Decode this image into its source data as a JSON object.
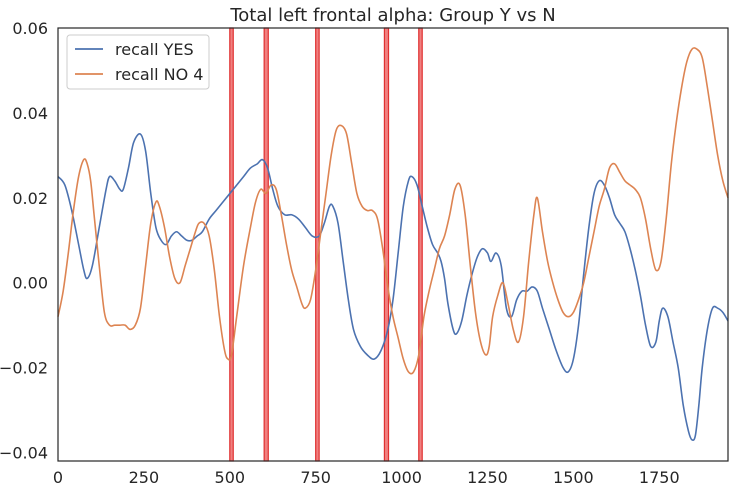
{
  "chart_data": {
    "type": "line",
    "title": "Total left frontal alpha: Group Y vs N",
    "xlabel": "",
    "ylabel": "",
    "xlim": [
      0,
      1950
    ],
    "ylim": [
      -0.042,
      0.06
    ],
    "xticks": [
      0,
      250,
      500,
      750,
      1000,
      1250,
      1500,
      1750
    ],
    "xtick_labels": [
      "0",
      "250",
      "500",
      "750",
      "1000",
      "1250",
      "1500",
      "1750"
    ],
    "yticks": [
      -0.04,
      -0.02,
      0.0,
      0.02,
      0.04,
      0.06
    ],
    "ytick_labels": [
      "−0.04",
      "−0.02",
      "0.00",
      "0.02",
      "0.04",
      "0.06"
    ],
    "grid": false,
    "legend_position": "top-left",
    "highlight_regions": [
      {
        "x0": 500,
        "x1": 510
      },
      {
        "x0": 600,
        "x1": 612
      },
      {
        "x0": 750,
        "x1": 760
      },
      {
        "x0": 950,
        "x1": 962
      },
      {
        "x0": 1050,
        "x1": 1060
      }
    ],
    "highlight_color": "#f08080",
    "highlight_edge_color": "#e03030",
    "series": [
      {
        "name": "recall YES",
        "color": "#4c72b0",
        "points": [
          [
            0,
            0.025
          ],
          [
            20,
            0.023
          ],
          [
            40,
            0.017
          ],
          [
            60,
            0.009
          ],
          [
            75,
            0.003
          ],
          [
            85,
            0.001
          ],
          [
            100,
            0.004
          ],
          [
            120,
            0.013
          ],
          [
            140,
            0.022
          ],
          [
            150,
            0.025
          ],
          [
            165,
            0.024
          ],
          [
            180,
            0.022
          ],
          [
            190,
            0.022
          ],
          [
            205,
            0.027
          ],
          [
            220,
            0.033
          ],
          [
            240,
            0.035
          ],
          [
            255,
            0.031
          ],
          [
            270,
            0.021
          ],
          [
            285,
            0.013
          ],
          [
            300,
            0.01
          ],
          [
            315,
            0.009
          ],
          [
            330,
            0.011
          ],
          [
            345,
            0.012
          ],
          [
            360,
            0.011
          ],
          [
            375,
            0.01
          ],
          [
            390,
            0.01
          ],
          [
            405,
            0.011
          ],
          [
            420,
            0.012
          ],
          [
            440,
            0.015
          ],
          [
            460,
            0.017
          ],
          [
            480,
            0.019
          ],
          [
            500,
            0.021
          ],
          [
            520,
            0.023
          ],
          [
            540,
            0.025
          ],
          [
            560,
            0.027
          ],
          [
            580,
            0.028
          ],
          [
            595,
            0.029
          ],
          [
            610,
            0.027
          ],
          [
            625,
            0.022
          ],
          [
            640,
            0.018
          ],
          [
            660,
            0.016
          ],
          [
            680,
            0.016
          ],
          [
            700,
            0.015
          ],
          [
            720,
            0.013
          ],
          [
            740,
            0.011
          ],
          [
            760,
            0.011
          ],
          [
            775,
            0.014
          ],
          [
            790,
            0.018
          ],
          [
            800,
            0.018
          ],
          [
            815,
            0.014
          ],
          [
            830,
            0.005
          ],
          [
            845,
            -0.004
          ],
          [
            860,
            -0.011
          ],
          [
            880,
            -0.015
          ],
          [
            900,
            -0.017
          ],
          [
            920,
            -0.018
          ],
          [
            940,
            -0.016
          ],
          [
            960,
            -0.011
          ],
          [
            975,
            -0.004
          ],
          [
            990,
            0.007
          ],
          [
            1005,
            0.018
          ],
          [
            1020,
            0.024
          ],
          [
            1030,
            0.025
          ],
          [
            1045,
            0.023
          ],
          [
            1060,
            0.018
          ],
          [
            1075,
            0.013
          ],
          [
            1090,
            0.009
          ],
          [
            1105,
            0.007
          ],
          [
            1115,
            0.005
          ],
          [
            1125,
            0.001
          ],
          [
            1135,
            -0.005
          ],
          [
            1150,
            -0.011
          ],
          [
            1160,
            -0.012
          ],
          [
            1175,
            -0.009
          ],
          [
            1190,
            -0.003
          ],
          [
            1205,
            0.002
          ],
          [
            1220,
            0.006
          ],
          [
            1235,
            0.008
          ],
          [
            1250,
            0.007
          ],
          [
            1260,
            0.005
          ],
          [
            1275,
            0.007
          ],
          [
            1290,
            0.004
          ],
          [
            1305,
            -0.006
          ],
          [
            1320,
            -0.008
          ],
          [
            1335,
            -0.004
          ],
          [
            1350,
            -0.002
          ],
          [
            1365,
            -0.002
          ],
          [
            1380,
            -0.001
          ],
          [
            1395,
            -0.002
          ],
          [
            1410,
            -0.006
          ],
          [
            1430,
            -0.011
          ],
          [
            1450,
            -0.016
          ],
          [
            1470,
            -0.02
          ],
          [
            1485,
            -0.021
          ],
          [
            1500,
            -0.018
          ],
          [
            1515,
            -0.01
          ],
          [
            1530,
            0.002
          ],
          [
            1545,
            0.013
          ],
          [
            1560,
            0.021
          ],
          [
            1575,
            0.024
          ],
          [
            1590,
            0.023
          ],
          [
            1605,
            0.02
          ],
          [
            1620,
            0.016
          ],
          [
            1635,
            0.014
          ],
          [
            1650,
            0.012
          ],
          [
            1665,
            0.008
          ],
          [
            1680,
            0.003
          ],
          [
            1695,
            -0.003
          ],
          [
            1710,
            -0.01
          ],
          [
            1725,
            -0.015
          ],
          [
            1740,
            -0.014
          ],
          [
            1750,
            -0.009
          ],
          [
            1760,
            -0.006
          ],
          [
            1775,
            -0.008
          ],
          [
            1790,
            -0.014
          ],
          [
            1805,
            -0.02
          ],
          [
            1820,
            -0.029
          ],
          [
            1835,
            -0.035
          ],
          [
            1845,
            -0.037
          ],
          [
            1855,
            -0.036
          ],
          [
            1865,
            -0.029
          ],
          [
            1875,
            -0.02
          ],
          [
            1890,
            -0.011
          ],
          [
            1905,
            -0.006
          ],
          [
            1920,
            -0.006
          ],
          [
            1935,
            -0.007
          ],
          [
            1950,
            -0.009
          ]
        ]
      },
      {
        "name": "recall NO 4",
        "color": "#dd8452",
        "points": [
          [
            0,
            -0.008
          ],
          [
            15,
            -0.002
          ],
          [
            30,
            0.007
          ],
          [
            45,
            0.017
          ],
          [
            60,
            0.025
          ],
          [
            75,
            0.029
          ],
          [
            85,
            0.028
          ],
          [
            95,
            0.024
          ],
          [
            105,
            0.016
          ],
          [
            120,
            0.004
          ],
          [
            135,
            -0.007
          ],
          [
            150,
            -0.01
          ],
          [
            165,
            -0.01
          ],
          [
            180,
            -0.01
          ],
          [
            195,
            -0.01
          ],
          [
            210,
            -0.011
          ],
          [
            225,
            -0.01
          ],
          [
            240,
            -0.006
          ],
          [
            255,
            0.004
          ],
          [
            270,
            0.014
          ],
          [
            285,
            0.019
          ],
          [
            295,
            0.018
          ],
          [
            310,
            0.013
          ],
          [
            325,
            0.006
          ],
          [
            340,
            0.001
          ],
          [
            355,
            0.0
          ],
          [
            370,
            0.004
          ],
          [
            385,
            0.008
          ],
          [
            400,
            0.012
          ],
          [
            410,
            0.014
          ],
          [
            425,
            0.014
          ],
          [
            440,
            0.011
          ],
          [
            455,
            0.003
          ],
          [
            470,
            -0.008
          ],
          [
            485,
            -0.016
          ],
          [
            495,
            -0.018
          ],
          [
            505,
            -0.017
          ],
          [
            520,
            -0.008
          ],
          [
            540,
            0.004
          ],
          [
            560,
            0.013
          ],
          [
            575,
            0.019
          ],
          [
            590,
            0.022
          ],
          [
            605,
            0.021
          ],
          [
            620,
            0.023
          ],
          [
            635,
            0.022
          ],
          [
            650,
            0.016
          ],
          [
            665,
            0.009
          ],
          [
            680,
            0.003
          ],
          [
            695,
            -0.001
          ],
          [
            710,
            -0.005
          ],
          [
            720,
            -0.006
          ],
          [
            735,
            -0.004
          ],
          [
            750,
            0.003
          ],
          [
            765,
            0.012
          ],
          [
            780,
            0.021
          ],
          [
            795,
            0.03
          ],
          [
            810,
            0.036
          ],
          [
            825,
            0.037
          ],
          [
            840,
            0.035
          ],
          [
            855,
            0.028
          ],
          [
            870,
            0.021
          ],
          [
            885,
            0.018
          ],
          [
            900,
            0.017
          ],
          [
            915,
            0.017
          ],
          [
            930,
            0.015
          ],
          [
            945,
            0.008
          ],
          [
            960,
            -0.001
          ],
          [
            975,
            -0.008
          ],
          [
            990,
            -0.013
          ],
          [
            1005,
            -0.018
          ],
          [
            1020,
            -0.021
          ],
          [
            1035,
            -0.021
          ],
          [
            1050,
            -0.017
          ],
          [
            1065,
            -0.008
          ],
          [
            1080,
            -0.002
          ],
          [
            1095,
            0.003
          ],
          [
            1110,
            0.008
          ],
          [
            1125,
            0.011
          ],
          [
            1140,
            0.016
          ],
          [
            1155,
            0.022
          ],
          [
            1170,
            0.023
          ],
          [
            1185,
            0.016
          ],
          [
            1200,
            0.004
          ],
          [
            1215,
            -0.007
          ],
          [
            1230,
            -0.014
          ],
          [
            1245,
            -0.017
          ],
          [
            1255,
            -0.015
          ],
          [
            1265,
            -0.008
          ],
          [
            1280,
            -0.003
          ],
          [
            1295,
            0.0
          ],
          [
            1310,
            -0.005
          ],
          [
            1325,
            -0.011
          ],
          [
            1340,
            -0.014
          ],
          [
            1355,
            -0.008
          ],
          [
            1370,
            0.005
          ],
          [
            1385,
            0.016
          ],
          [
            1395,
            0.02
          ],
          [
            1410,
            0.012
          ],
          [
            1425,
            0.005
          ],
          [
            1440,
            0.0
          ],
          [
            1455,
            -0.004
          ],
          [
            1470,
            -0.007
          ],
          [
            1485,
            -0.008
          ],
          [
            1500,
            -0.007
          ],
          [
            1515,
            -0.004
          ],
          [
            1530,
            0.0
          ],
          [
            1545,
            0.006
          ],
          [
            1560,
            0.012
          ],
          [
            1575,
            0.018
          ],
          [
            1590,
            0.022
          ],
          [
            1605,
            0.027
          ],
          [
            1620,
            0.028
          ],
          [
            1635,
            0.026
          ],
          [
            1650,
            0.024
          ],
          [
            1665,
            0.023
          ],
          [
            1680,
            0.022
          ],
          [
            1695,
            0.02
          ],
          [
            1710,
            0.015
          ],
          [
            1725,
            0.008
          ],
          [
            1740,
            0.003
          ],
          [
            1755,
            0.005
          ],
          [
            1770,
            0.015
          ],
          [
            1785,
            0.028
          ],
          [
            1800,
            0.038
          ],
          [
            1815,
            0.046
          ],
          [
            1830,
            0.052
          ],
          [
            1845,
            0.055
          ],
          [
            1860,
            0.055
          ],
          [
            1875,
            0.053
          ],
          [
            1890,
            0.046
          ],
          [
            1905,
            0.038
          ],
          [
            1920,
            0.03
          ],
          [
            1935,
            0.024
          ],
          [
            1950,
            0.02
          ]
        ]
      }
    ]
  }
}
